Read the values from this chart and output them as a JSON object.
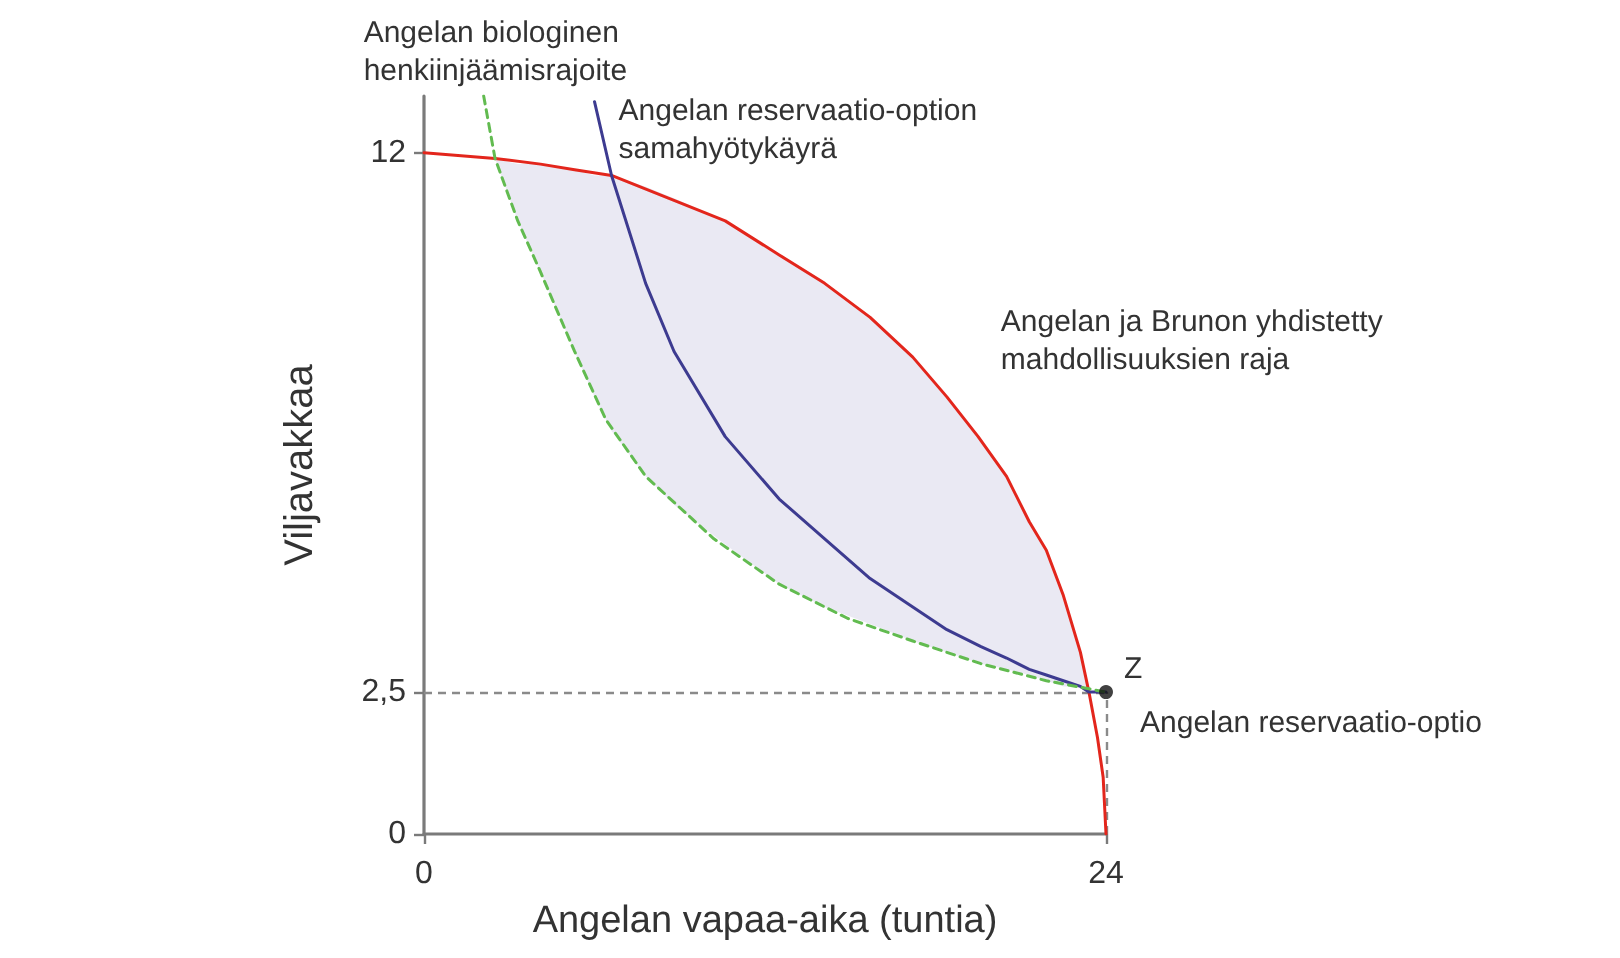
{
  "chart_data": {
    "type": "line",
    "xlabel": "Angelan vapaa-aika (tuntia)",
    "ylabel": "Viljavakkaa",
    "xlim": [
      0,
      24
    ],
    "ylim": [
      0,
      13
    ],
    "xticks": [
      0,
      24
    ],
    "yticks": [
      0,
      {
        "value": 2.5,
        "label": "2,5"
      },
      12
    ],
    "grid": false,
    "legend": false,
    "series": [
      {
        "name": "Angelan ja Brunon yhdistetty mahdollisuuksien raja",
        "color": "#e3261c",
        "line_style": "solid",
        "marker": "none",
        "x": [
          0,
          2.5,
          4.1,
          5.3,
          6.6,
          8.6,
          10.6,
          12.5,
          14.1,
          15.7,
          17.2,
          18.4,
          19.5,
          20.5,
          21.3,
          21.9,
          22.5,
          23.1,
          23.4,
          23.7,
          23.9,
          24
        ],
        "values": [
          12,
          11.9,
          11.8,
          11.7,
          11.6,
          11.2,
          10.8,
          10.2,
          9.7,
          9.1,
          8.4,
          7.7,
          7.0,
          6.3,
          5.5,
          5.0,
          4.2,
          3.2,
          2.5,
          1.7,
          1.0,
          0
        ]
      },
      {
        "name": "Angelan reservaatio-option samahyötykäyrä",
        "color": "#3d3b90",
        "line_style": "solid",
        "marker": "none",
        "x": [
          2.5,
          3.3,
          4.1,
          5.3,
          6.0,
          6.6,
          7.8,
          8.8,
          10.6,
          12.5,
          14.1,
          15.7,
          17.2,
          18.4,
          19.6,
          20.5,
          21.3,
          21.9,
          22.5,
          23.1,
          23.4,
          24
        ],
        "values": [
          null,
          null,
          null,
          null,
          12.9,
          11.6,
          9.7,
          8.5,
          7.0,
          5.9,
          5.2,
          4.5,
          4.0,
          3.6,
          3.3,
          3.1,
          2.9,
          2.8,
          2.7,
          2.6,
          2.5,
          2.5
        ],
        "lower": [
          11.9,
          10.8,
          9.9,
          8.5,
          7.7,
          7.1,
          6.3,
          5.8,
          5.1,
          4.4,
          4.0,
          3.7,
          3.4,
          3.2,
          3.0,
          2.9,
          2.8,
          2.7,
          2.6,
          2.6,
          2.5,
          null
        ],
        "upper": [
          11.9,
          11.8,
          11.8,
          11.7,
          11.6,
          11.6,
          11.4,
          11.2,
          10.8,
          10.2,
          9.7,
          9.1,
          8.4,
          7.7,
          6.9,
          6.3,
          5.5,
          5.0,
          4.2,
          3.2,
          2.5,
          null
        ]
      },
      {
        "name": "Angelan biologinen henkiinjäämisrajoite",
        "color": "#62bb50",
        "line_style": "dashed",
        "marker": "none",
        "x": [
          2.1,
          2.5,
          3.3,
          4.1,
          5.3,
          6.4,
          7.8,
          10.2,
          12.5,
          14.9,
          17.2,
          19.6,
          21.9,
          24
        ],
        "values": [
          13.0,
          11.9,
          10.8,
          9.9,
          8.5,
          7.3,
          6.3,
          5.2,
          4.4,
          3.8,
          3.4,
          3.0,
          2.7,
          2.5
        ]
      },
      {
        "type": "scatter",
        "color": "#111111",
        "marker": "circle",
        "x": [
          24
        ],
        "values": [
          2.5
        ]
      }
    ],
    "ref_lines": [
      {
        "axis": "y",
        "value": 2.5,
        "color": "#8a8a8a",
        "line_style": "dashed"
      },
      {
        "axis": "x",
        "value": 24,
        "color": "#8a8a8a",
        "line_style": "dashed"
      }
    ],
    "annotations": [
      {
        "text": "Z",
        "x": 24,
        "y": 2.5
      },
      {
        "text": "Angelan reservaatio-optio",
        "x": 24,
        "y": 2.5
      }
    ]
  }
}
